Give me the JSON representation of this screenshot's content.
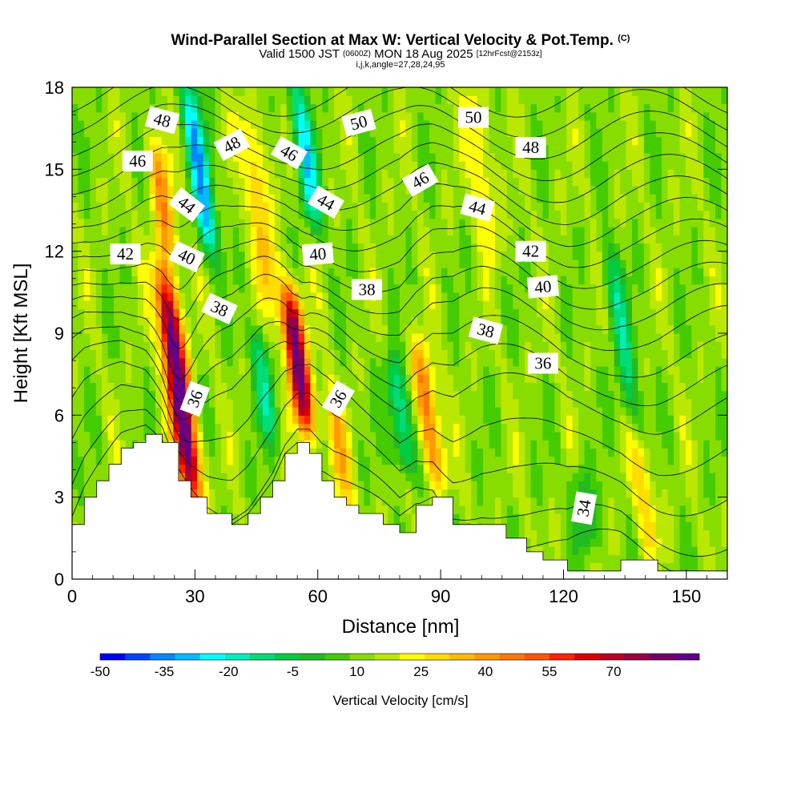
{
  "title": {
    "main": "Wind-Parallel Section at Max W: Vertical Velocity & Pot.Temp.",
    "tag": "(C)",
    "valid_prefix": "Valid 1500 JST",
    "valid_utc": "(0600Z)",
    "valid_date": "MON 18 Aug 2025",
    "forecast": "[12hrFcst@2153z]",
    "indices": "i,j,k,angle=27,28,24,95"
  },
  "chart_data": {
    "type": "heatmap",
    "xlabel": "Distance [nm]",
    "ylabel": "Height [Kft MSL]",
    "xlim": [
      0,
      160
    ],
    "ylim": [
      0,
      18
    ],
    "x_ticks": [
      "0",
      "30",
      "60",
      "90",
      "120",
      "150"
    ],
    "y_ticks": [
      "0",
      "3",
      "6",
      "9",
      "12",
      "15",
      "18"
    ],
    "colorbar": {
      "label": "Vertical Velocity [cm/s]",
      "tick_labels": [
        "-50",
        "-35",
        "-20",
        "-5",
        "10",
        "25",
        "40",
        "55",
        "70"
      ],
      "min": -50,
      "max": 85,
      "step": 5,
      "colors": [
        "#0000ff",
        "#0044ff",
        "#0088ff",
        "#00bbff",
        "#00ffff",
        "#00eebb",
        "#00dd77",
        "#00cc44",
        "#22bb22",
        "#44cc00",
        "#88dd00",
        "#bbe800",
        "#ffff00",
        "#ffdd00",
        "#ffbb00",
        "#ff9900",
        "#ff7700",
        "#ff5500",
        "#ff2200",
        "#dd0000",
        "#bb0022",
        "#990044",
        "#770066",
        "#660088"
      ]
    },
    "velocity_features": [
      {
        "x": 26,
        "zmin": 3,
        "zmax": 11,
        "w": 72
      },
      {
        "x": 55,
        "zmin": 5.5,
        "zmax": 10.5,
        "w": 62
      },
      {
        "x": 87,
        "zmin": 3.5,
        "zmax": 8.5,
        "w": 30
      },
      {
        "x": 65,
        "zmin": 2.5,
        "zmax": 7,
        "w": 18
      },
      {
        "x": 31,
        "zmin": 12,
        "zmax": 18,
        "w": -35
      },
      {
        "x": 57,
        "zmin": 13,
        "zmax": 18,
        "w": -30
      },
      {
        "x": 80,
        "zmin": 4,
        "zmax": 8,
        "w": -25
      },
      {
        "x": 47,
        "zmin": 5,
        "zmax": 9,
        "w": -20
      },
      {
        "x": 22,
        "zmin": 12,
        "zmax": 16,
        "w": 25
      },
      {
        "x": 46,
        "zmin": 10,
        "zmax": 17,
        "w": 20
      },
      {
        "x": 134,
        "zmin": 6,
        "zmax": 12,
        "w": -20
      },
      {
        "x": 140,
        "zmin": 1,
        "zmax": 5,
        "w": 15
      },
      {
        "x": 125,
        "zmin": 1,
        "zmax": 4,
        "w": -15
      },
      {
        "x": 100,
        "zmin": 12,
        "zmax": 18,
        "w": 15
      }
    ],
    "terrain": [
      {
        "x": 0,
        "z": 2.0
      },
      {
        "x": 3,
        "z": 3.0
      },
      {
        "x": 6,
        "z": 3.6
      },
      {
        "x": 9,
        "z": 4.2
      },
      {
        "x": 12,
        "z": 4.8
      },
      {
        "x": 15,
        "z": 5.0
      },
      {
        "x": 18,
        "z": 5.3
      },
      {
        "x": 22,
        "z": 5.0
      },
      {
        "x": 26,
        "z": 3.6
      },
      {
        "x": 29,
        "z": 3.0
      },
      {
        "x": 33,
        "z": 2.4
      },
      {
        "x": 39,
        "z": 2.0
      },
      {
        "x": 43,
        "z": 2.4
      },
      {
        "x": 46,
        "z": 3.0
      },
      {
        "x": 49,
        "z": 3.6
      },
      {
        "x": 52,
        "z": 4.6
      },
      {
        "x": 55,
        "z": 5.0
      },
      {
        "x": 58,
        "z": 4.6
      },
      {
        "x": 61,
        "z": 3.6
      },
      {
        "x": 64,
        "z": 3.0
      },
      {
        "x": 67,
        "z": 2.7
      },
      {
        "x": 70,
        "z": 2.4
      },
      {
        "x": 76,
        "z": 2.0
      },
      {
        "x": 80,
        "z": 1.7
      },
      {
        "x": 84,
        "z": 2.7
      },
      {
        "x": 88,
        "z": 3.0
      },
      {
        "x": 93,
        "z": 2.0
      },
      {
        "x": 100,
        "z": 2.0
      },
      {
        "x": 106,
        "z": 1.5
      },
      {
        "x": 111,
        "z": 1.0
      },
      {
        "x": 115,
        "z": 0.7
      },
      {
        "x": 121,
        "z": 0.3
      },
      {
        "x": 134,
        "z": 0.7
      },
      {
        "x": 143,
        "z": 0.3
      },
      {
        "x": 160,
        "z": 0.3
      }
    ],
    "isentropes": [
      {
        "theta": 34,
        "level": 0.5
      },
      {
        "theta": 35,
        "level": 1.5
      },
      {
        "theta": 36,
        "level": 3.0
      },
      {
        "theta": 37,
        "level": 4.5
      },
      {
        "theta": 38,
        "level": 6.0
      },
      {
        "theta": 39,
        "level": 7.0
      },
      {
        "theta": 40,
        "level": 8.0
      },
      {
        "theta": 41,
        "level": 9.0
      },
      {
        "theta": 42,
        "level": 9.8
      },
      {
        "theta": 43,
        "level": 10.6
      },
      {
        "theta": 44,
        "level": 11.4
      },
      {
        "theta": 45,
        "level": 12.2
      },
      {
        "theta": 46,
        "level": 13.0
      },
      {
        "theta": 47,
        "level": 13.8
      },
      {
        "theta": 48,
        "level": 14.6
      },
      {
        "theta": 49,
        "level": 15.4
      },
      {
        "theta": 50,
        "level": 16.2
      },
      {
        "theta": 51,
        "level": 17.0
      },
      {
        "theta": 52,
        "level": 17.8
      }
    ],
    "contour_labels": [
      {
        "text": "48",
        "x": 22,
        "z": 16.8,
        "angle": 15
      },
      {
        "text": "48",
        "x": 39,
        "z": 15.9,
        "angle": -28
      },
      {
        "text": "50",
        "x": 70,
        "z": 16.7,
        "angle": -15
      },
      {
        "text": "50",
        "x": 98,
        "z": 16.9,
        "angle": 0
      },
      {
        "text": "48",
        "x": 112,
        "z": 15.8,
        "angle": 0
      },
      {
        "text": "46",
        "x": 16,
        "z": 15.3,
        "angle": 0
      },
      {
        "text": "46",
        "x": 53,
        "z": 15.6,
        "angle": 30
      },
      {
        "text": "46",
        "x": 85,
        "z": 14.6,
        "angle": -30
      },
      {
        "text": "44",
        "x": 28,
        "z": 13.7,
        "angle": 38
      },
      {
        "text": "44",
        "x": 62,
        "z": 13.8,
        "angle": 30
      },
      {
        "text": "44",
        "x": 99,
        "z": 13.6,
        "angle": 15
      },
      {
        "text": "42",
        "x": 13,
        "z": 11.9,
        "angle": 0
      },
      {
        "text": "42",
        "x": 112,
        "z": 12.0,
        "angle": 0
      },
      {
        "text": "40",
        "x": 28,
        "z": 11.8,
        "angle": 25
      },
      {
        "text": "40",
        "x": 60,
        "z": 11.9,
        "angle": -5
      },
      {
        "text": "40",
        "x": 115,
        "z": 10.7,
        "angle": -5
      },
      {
        "text": "38",
        "x": 36,
        "z": 9.9,
        "angle": 25
      },
      {
        "text": "38",
        "x": 72,
        "z": 10.6,
        "angle": 0
      },
      {
        "text": "38",
        "x": 101,
        "z": 9.1,
        "angle": 15
      },
      {
        "text": "36",
        "x": 115,
        "z": 7.9,
        "angle": 0
      },
      {
        "text": "36",
        "x": 30,
        "z": 6.6,
        "angle": -70
      },
      {
        "text": "36",
        "x": 65,
        "z": 6.6,
        "angle": -60
      },
      {
        "text": "34",
        "x": 125,
        "z": 2.6,
        "angle": -80
      }
    ]
  }
}
